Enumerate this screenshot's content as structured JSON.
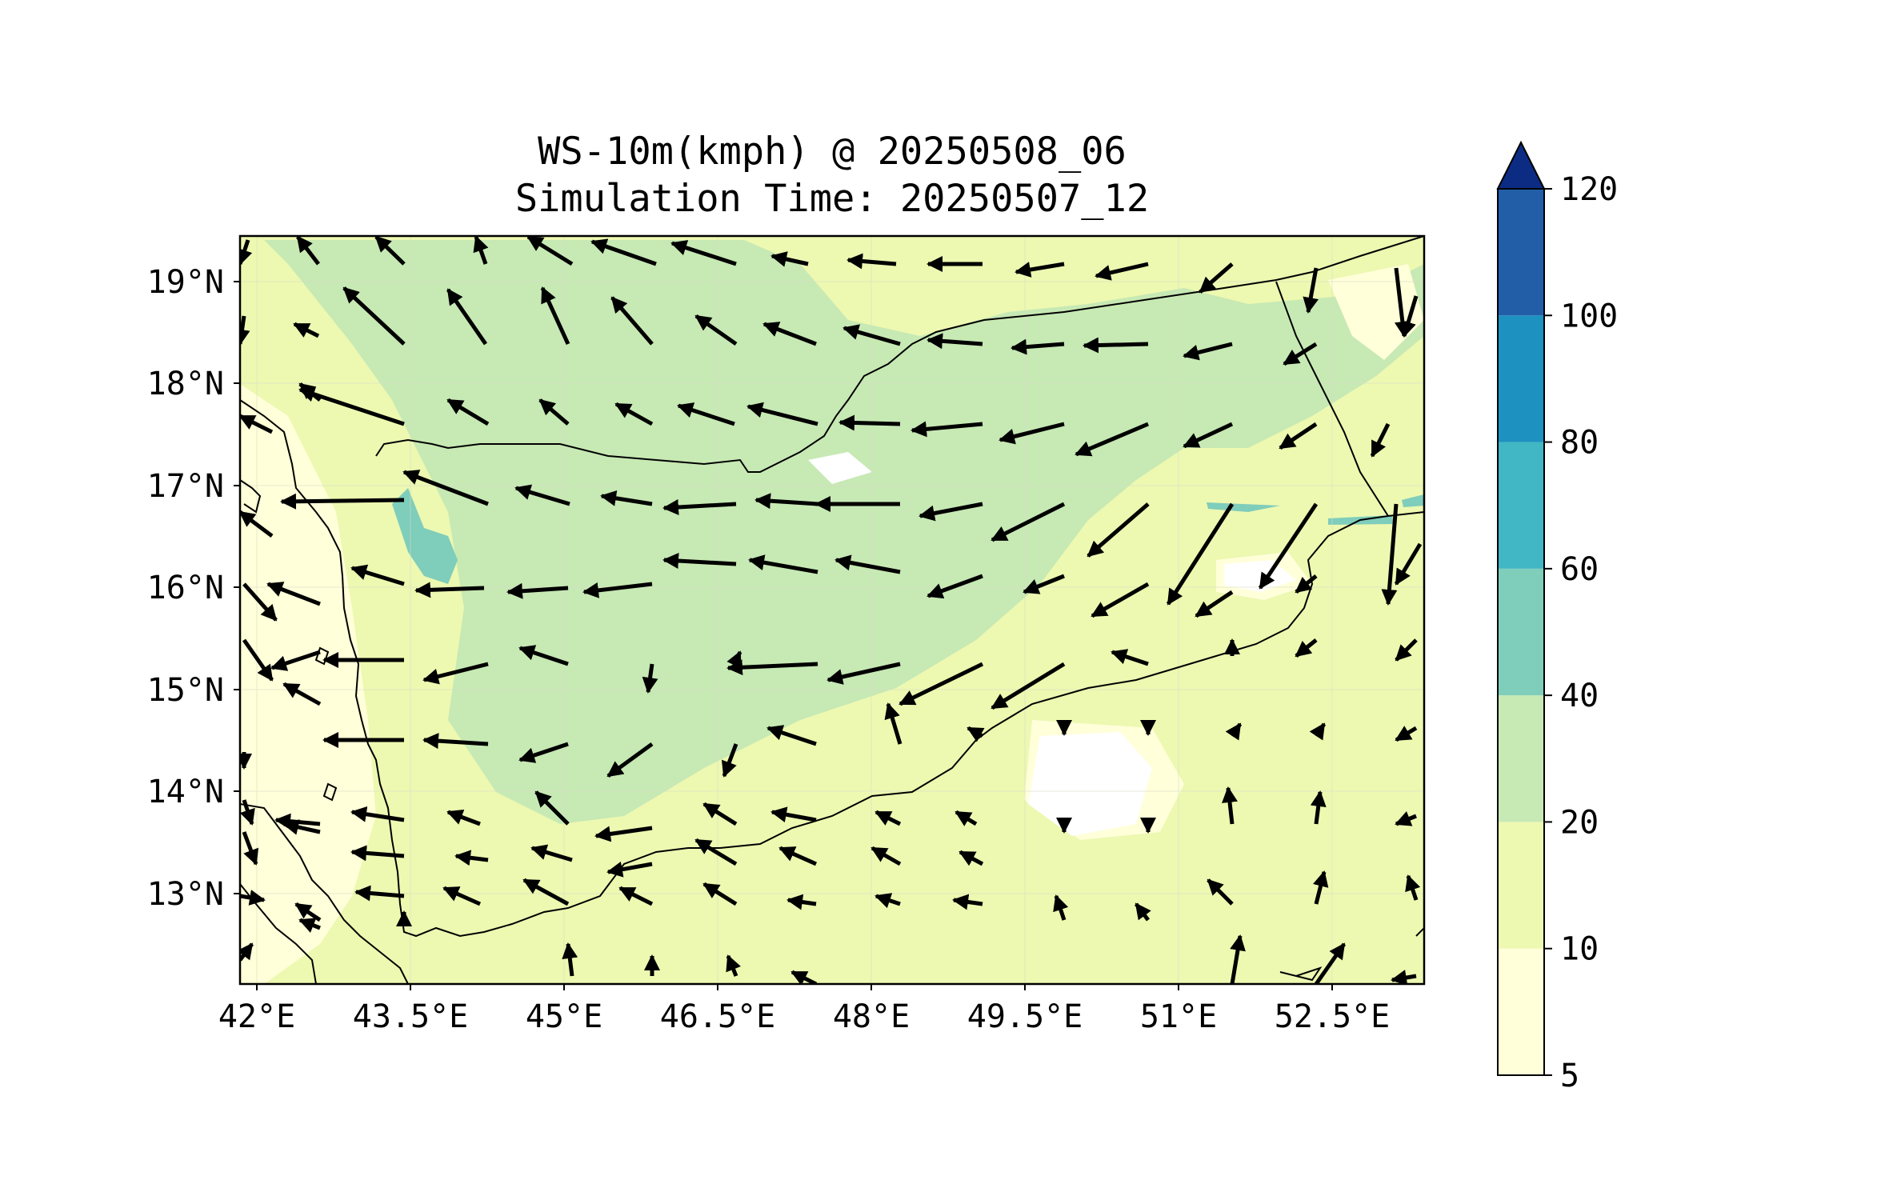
{
  "title": {
    "line1": "WS-10m(kmph) @ 20250508_06",
    "line2": "Simulation Time: 20250507_12"
  },
  "map": {
    "lon_range": [
      41.8,
      53.45
    ],
    "lat_range": [
      12.1,
      19.45
    ],
    "x_ticks": [
      "42°E",
      "43.5°E",
      "45°E",
      "46.5°E",
      "48°E",
      "49.5°E",
      "51°E",
      "52.5°E"
    ],
    "y_ticks": [
      "19°N",
      "18°N",
      "17°N",
      "16°N",
      "15°N",
      "14°N",
      "13°N"
    ],
    "background_color": "#edf8b1",
    "land_color": "#f4fbc6"
  },
  "colorbar": {
    "levels": [
      "5",
      "10",
      "20",
      "40",
      "60",
      "80",
      "100",
      "120"
    ],
    "colors": [
      "#ffffd9",
      "#edf8b1",
      "#c7e9b4",
      "#7fcdbb",
      "#41b6c4",
      "#1d91c0",
      "#225ea8",
      "#0c2c84"
    ],
    "extend": "max"
  },
  "wind_vectors": "black quiver arrows over the contour field"
}
